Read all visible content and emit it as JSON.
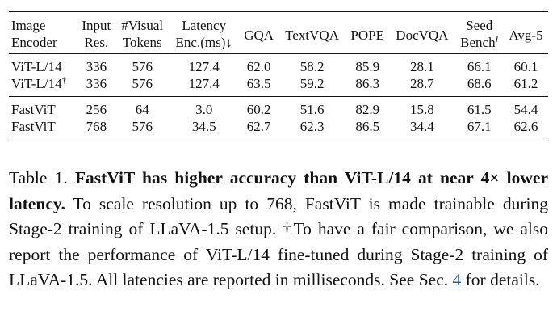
{
  "table": {
    "header_row1": [
      "Image",
      "Input",
      "#Visual",
      "Latency",
      "GQA",
      "TextVQA",
      "POPE",
      "DocVQA",
      "Seed",
      "Avg-5"
    ],
    "header_row2": [
      "Encoder",
      "Res.",
      "Tokens",
      "Enc.(ms)↓",
      "Bench",
      "I"
    ],
    "group1": [
      {
        "encoder": "ViT-L/14",
        "mark": "",
        "res": "336",
        "tokens": "576",
        "latency": "127.4",
        "gqa": "62.0",
        "textvqa": "58.2",
        "pope": "85.9",
        "docvqa": "28.1",
        "seed": "66.1",
        "avg": "60.1"
      },
      {
        "encoder": "ViT-L/14",
        "mark": "†",
        "res": "336",
        "tokens": "576",
        "latency": "127.4",
        "gqa": "63.5",
        "textvqa": "59.2",
        "pope": "86.3",
        "docvqa": "28.7",
        "seed": "68.6",
        "avg": "61.2"
      }
    ],
    "group2": [
      {
        "encoder": "FastViT",
        "res": "256",
        "tokens": "64",
        "latency": "3.0",
        "gqa": "60.2",
        "textvqa": "51.6",
        "pope": "82.9",
        "docvqa": "15.8",
        "seed": "61.5",
        "avg": "54.4"
      },
      {
        "encoder": "FastViT",
        "res": "768",
        "tokens": "576",
        "latency": "34.5",
        "gqa": "62.7",
        "textvqa": "62.3",
        "pope": "86.5",
        "docvqa": "34.4",
        "seed": "67.1",
        "avg": "62.6"
      }
    ]
  },
  "caption": {
    "label": "Table 1.",
    "lead": "FastViT has higher accuracy than ViT-L/14 at near 4× lower latency.",
    "body1": "To scale resolution up to 768, FastViT is made trainable during Stage-2 training of LLaVA-1.5 setup. †To have a fair comparison, we also report the performance of ViT-L/14 fine-tuned during Stage-2 training of LLaVA-1.5. All latencies are reported in milliseconds. See Sec.",
    "ref": "4",
    "body2": "for details."
  }
}
